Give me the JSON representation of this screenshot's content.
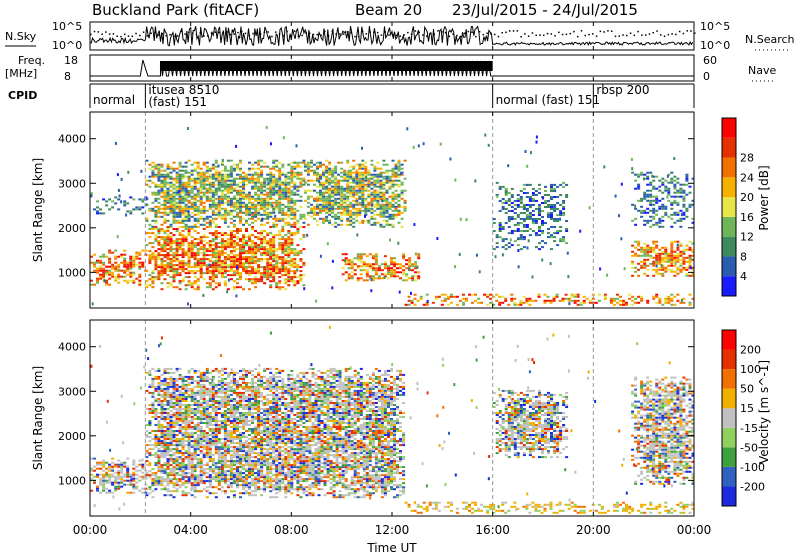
{
  "header": {
    "station": "Buckland Park (fitACF)",
    "beam": "Beam 20",
    "date_range": "23/Jul/2015 - 24/Jul/2015"
  },
  "top_panels": {
    "nsky_label": "N.Sky",
    "nsky_ticks": [
      "10^5",
      "10^0"
    ],
    "nsearch_label": "N.Search",
    "nsearch_ticks": [
      "10^5",
      "10^0"
    ],
    "freq_label_1": "Freq.",
    "freq_label_2": "[MHz]",
    "freq_ticks": [
      "18",
      "8"
    ],
    "nave_label": "Nave",
    "nave_ticks": [
      "60",
      "0"
    ],
    "cpid_label": "CPID",
    "cpid_segments": [
      {
        "start": 0.0,
        "end": 2.2,
        "label": "normal"
      },
      {
        "start": 2.2,
        "end": 16.0,
        "label": "itusea 8510",
        "sublabel": "(fast) 151"
      },
      {
        "start": 16.0,
        "end": 20.0,
        "label": "normal (fast) 151"
      },
      {
        "start": 20.0,
        "end": 24.0,
        "label": "rbsp 200"
      }
    ]
  },
  "chart_data": [
    {
      "type": "heatmap",
      "panel": "power",
      "xlabel": "",
      "ylabel": "Slant Range [km]",
      "xlim": [
        0,
        24
      ],
      "ylim": [
        200,
        4600
      ],
      "yticks": [
        1000,
        2000,
        3000,
        4000
      ],
      "colorbar": {
        "label": "Power [dB]",
        "ticks": [
          "4",
          "8",
          "12",
          "16",
          "20",
          "24",
          "28"
        ],
        "colors": [
          "#1a1aff",
          "#2a5cb0",
          "#3d8a5c",
          "#6fb65a",
          "#e6e64a",
          "#f5b000",
          "#f07000",
          "#e63000",
          "#ff0000"
        ]
      },
      "regions": [
        {
          "t0": 0.0,
          "t1": 2.2,
          "r0": 700,
          "r1": 1500,
          "level": "strong"
        },
        {
          "t0": 0.0,
          "t1": 2.2,
          "r0": 2300,
          "r1": 2700,
          "level": "weak"
        },
        {
          "t0": 2.2,
          "t1": 8.5,
          "r0": 600,
          "r1": 2000,
          "level": "strong"
        },
        {
          "t0": 2.2,
          "t1": 8.5,
          "r0": 2000,
          "r1": 3500,
          "level": "moderate"
        },
        {
          "t0": 8.5,
          "t1": 12.5,
          "r0": 2000,
          "r1": 3500,
          "level": "moderate"
        },
        {
          "t0": 10.0,
          "t1": 13.0,
          "r0": 800,
          "r1": 1400,
          "level": "strong"
        },
        {
          "t0": 12.5,
          "t1": 24.0,
          "r0": 250,
          "r1": 500,
          "level": "strong"
        },
        {
          "t0": 16.0,
          "t1": 19.0,
          "r0": 1500,
          "r1": 3000,
          "level": "weak"
        },
        {
          "t0": 21.5,
          "t1": 24.0,
          "r0": 900,
          "r1": 1700,
          "level": "strong"
        },
        {
          "t0": 21.5,
          "t1": 24.0,
          "r0": 2000,
          "r1": 3300,
          "level": "weak"
        }
      ]
    },
    {
      "type": "heatmap",
      "panel": "velocity",
      "xlabel": "Time UT",
      "ylabel": "Slant Range [km]",
      "xlim": [
        0,
        24
      ],
      "ylim": [
        200,
        4600
      ],
      "xticks": [
        "00:00",
        "04:00",
        "08:00",
        "12:00",
        "16:00",
        "20:00",
        "00:00"
      ],
      "yticks": [
        1000,
        2000,
        3000,
        4000
      ],
      "colorbar": {
        "label": "Velocity [m s^-1]",
        "ticks": [
          "200",
          "100",
          "50",
          "15",
          "-15",
          "-50",
          "-100",
          "-200"
        ],
        "colors": [
          "#1a2adc",
          "#3060c0",
          "#3fa040",
          "#8fd060",
          "#c0c0c0",
          "#f0b000",
          "#f07000",
          "#e63000",
          "#ff0000"
        ]
      },
      "regions": [
        {
          "t0": 0.0,
          "t1": 2.2,
          "r0": 700,
          "r1": 1500,
          "level": "gray"
        },
        {
          "t0": 2.2,
          "t1": 12.5,
          "r0": 600,
          "r1": 3500,
          "level": "gray"
        },
        {
          "t0": 12.5,
          "t1": 24.0,
          "r0": 250,
          "r1": 500,
          "level": "orange"
        },
        {
          "t0": 16.0,
          "t1": 19.0,
          "r0": 1500,
          "r1": 3000,
          "level": "gray"
        },
        {
          "t0": 21.5,
          "t1": 24.0,
          "r0": 900,
          "r1": 3300,
          "level": "gray"
        }
      ]
    }
  ]
}
